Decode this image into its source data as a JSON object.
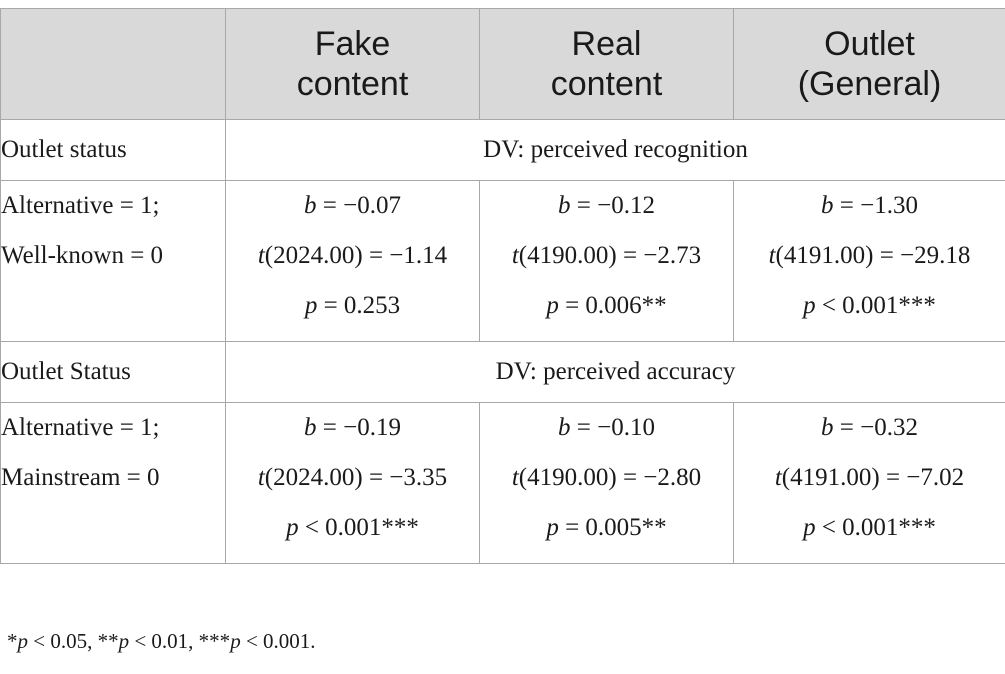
{
  "table": {
    "header": {
      "corner": "",
      "columns": [
        {
          "line1": "Fake",
          "line2": "content"
        },
        {
          "line1": "Real",
          "line2": "content"
        },
        {
          "line1": "Outlet",
          "line2": "(General)"
        }
      ]
    },
    "sections": [
      {
        "label": "Outlet status",
        "dv": "DV: perceived recognition",
        "row": {
          "label_line1": "Alternative = 1;",
          "label_line2": "Well-known = 0",
          "cells": [
            {
              "b": "b",
              "b_val": " = −0.07",
              "t": "t",
              "t_val": "(2024.00) = −1.14",
              "p": "p",
              "p_val": " = 0.253"
            },
            {
              "b": "b",
              "b_val": " = −0.12",
              "t": "t",
              "t_val": "(4190.00) = −2.73",
              "p": "p",
              "p_val": " = 0.006**"
            },
            {
              "b": "b",
              "b_val": " = −1.30",
              "t": "t",
              "t_val": "(4191.00) = −29.18",
              "p": "p",
              "p_val": " < 0.001***"
            }
          ]
        }
      },
      {
        "label": "Outlet Status",
        "dv": "DV: perceived accuracy",
        "row": {
          "label_line1": "Alternative = 1;",
          "label_line2": "Mainstream = 0",
          "cells": [
            {
              "b": "b",
              "b_val": " = −0.19",
              "t": "t",
              "t_val": "(2024.00) = −3.35",
              "p": "p",
              "p_val": " < 0.001***"
            },
            {
              "b": "b",
              "b_val": " = −0.10",
              "t": "t",
              "t_val": "(4190.00) = −2.80",
              "p": "p",
              "p_val": " = 0.005**"
            },
            {
              "b": "b",
              "b_val": " = −0.32",
              "t": "t",
              "t_val": "(4191.00) = −7.02",
              "p": "p",
              "p_val": " < 0.001***"
            }
          ]
        }
      }
    ]
  },
  "footnote": {
    "s1": "*",
    "p1": "p",
    "v1": " < 0.05, **",
    "p2": "p",
    "v2": " < 0.01, ***",
    "p3": "p",
    "v3": " < 0.001."
  }
}
